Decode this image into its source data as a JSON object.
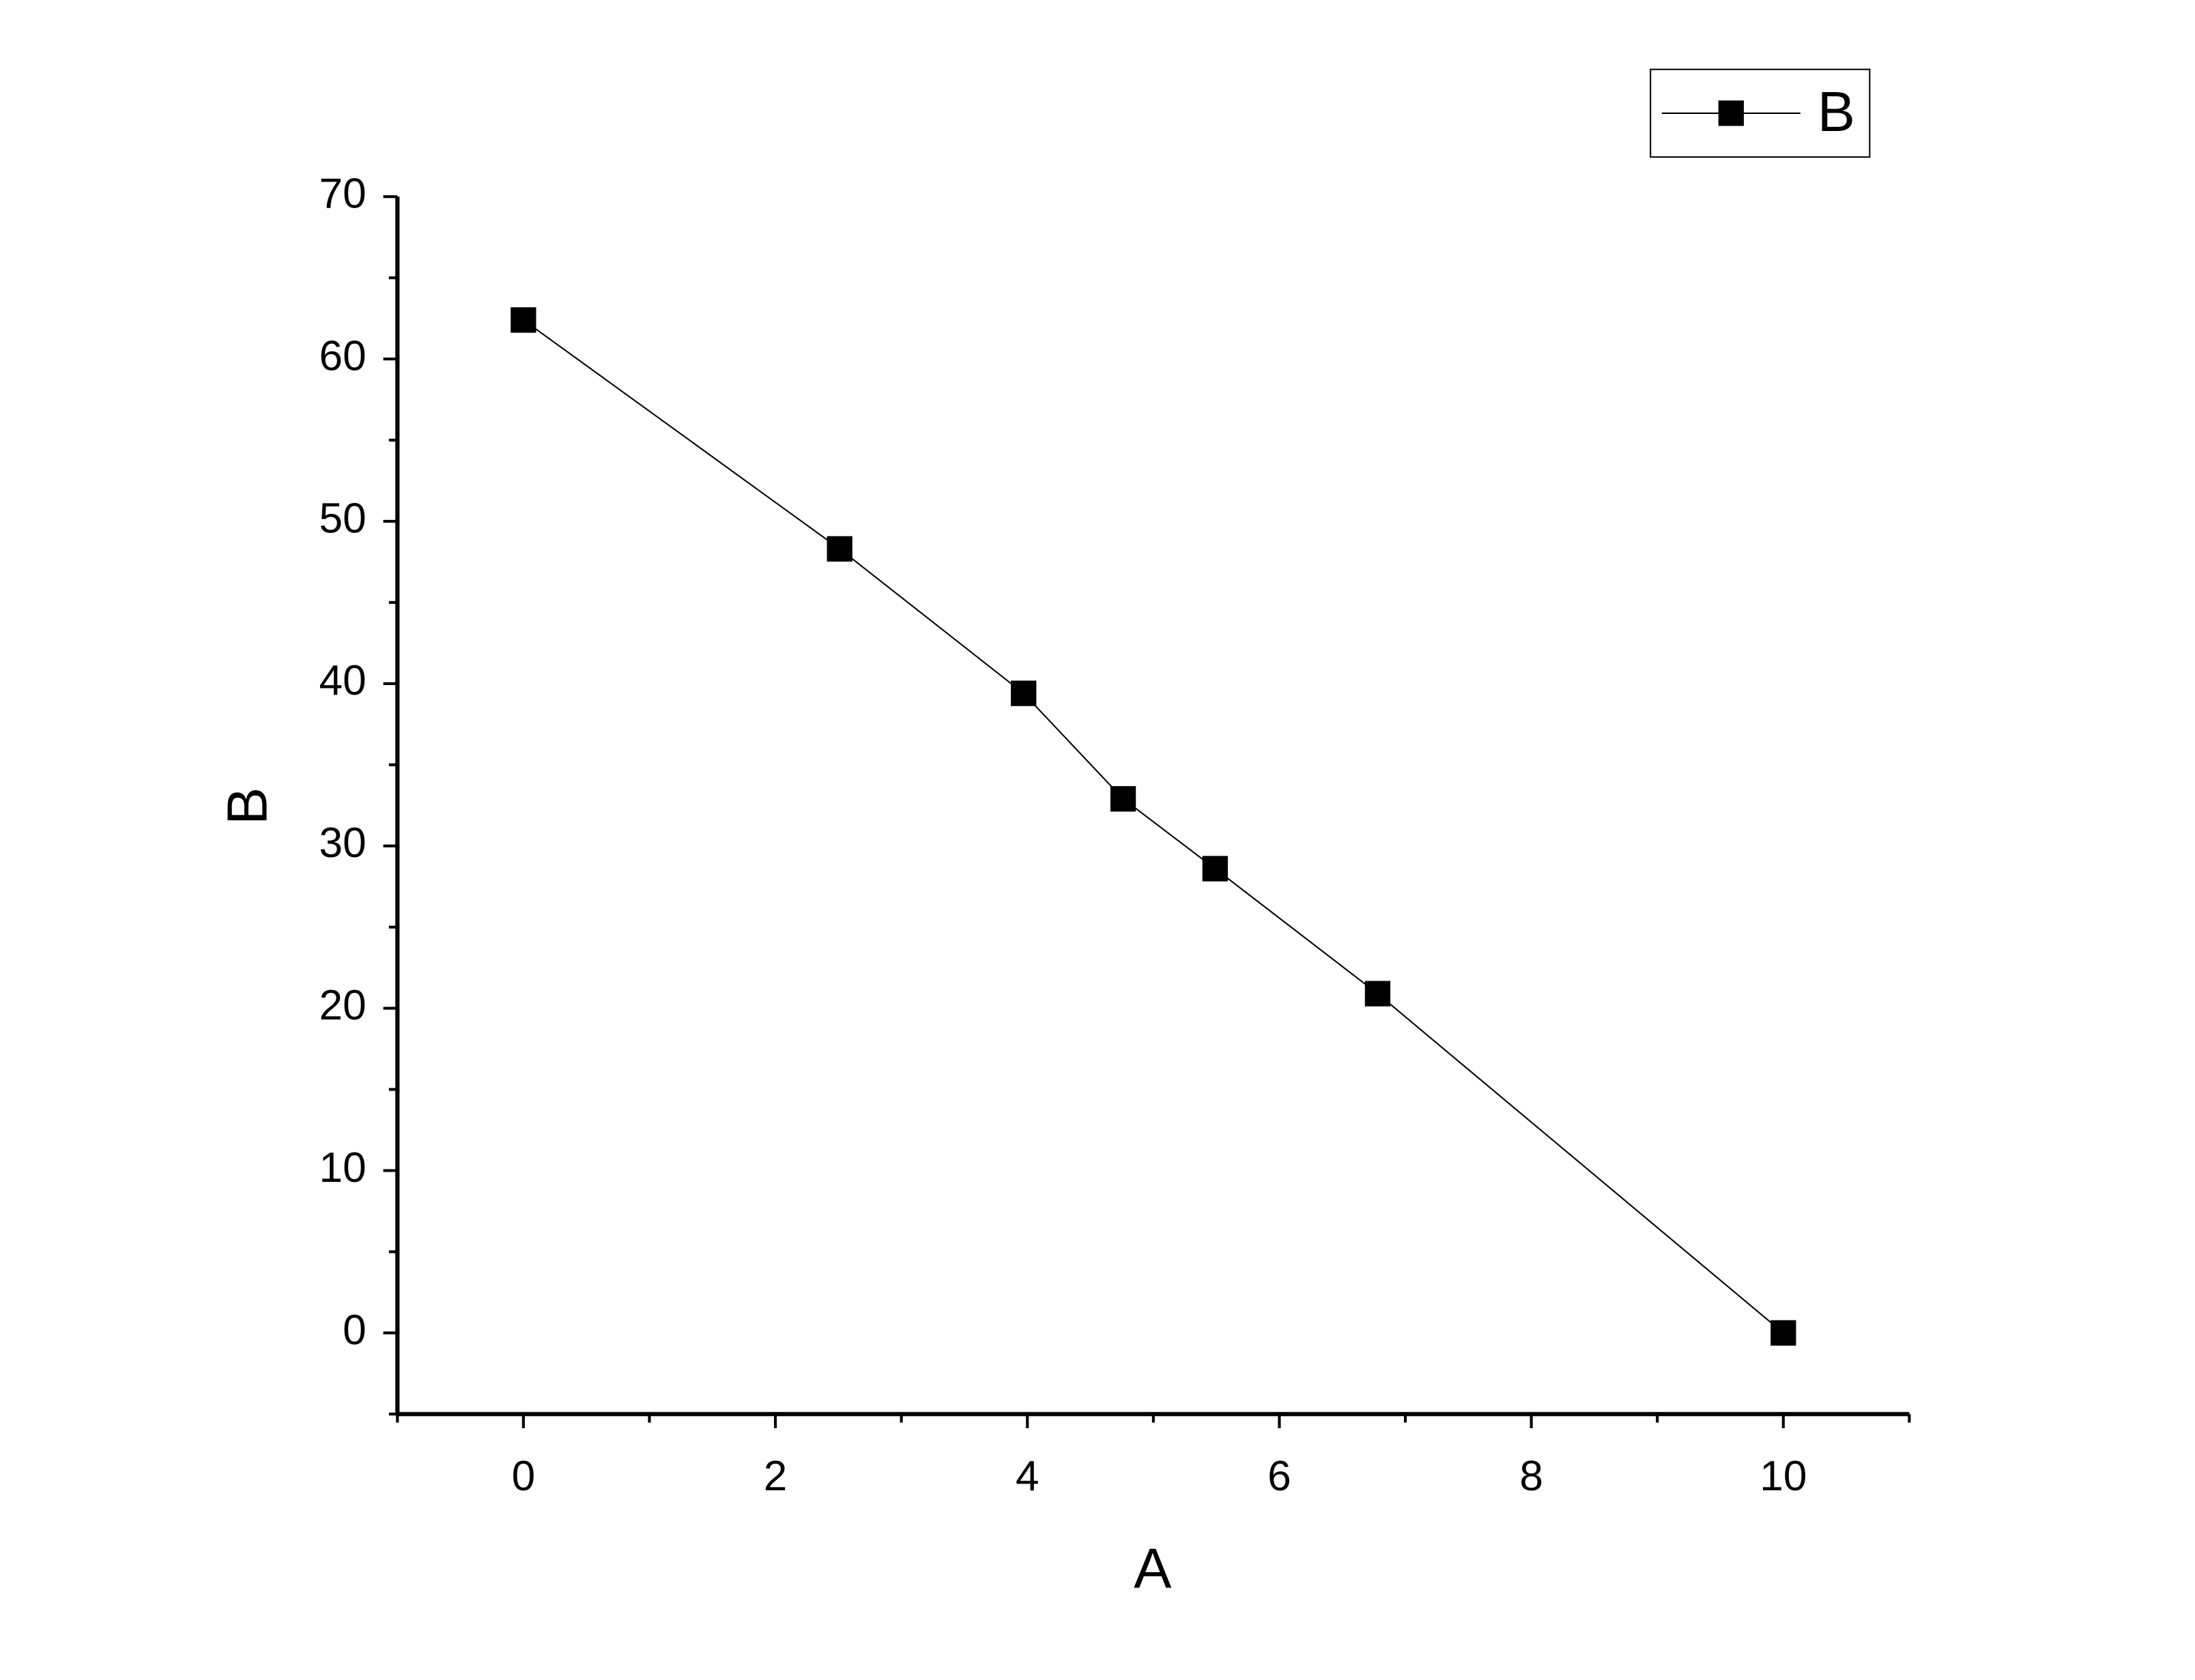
{
  "chart_data": {
    "type": "line",
    "x_label": "A",
    "y_label": "B",
    "x": [
      0,
      2.51,
      3.97,
      4.76,
      5.49,
      6.78,
      10
    ],
    "series": [
      {
        "name": "B",
        "color": "#000000",
        "values": [
          62.4,
          48.3,
          39.4,
          32.9,
          28.6,
          20.9,
          0
        ]
      }
    ],
    "xlim": [
      -1,
      11
    ],
    "xticks": [
      0,
      2,
      4,
      6,
      8,
      10
    ],
    "ylim": [
      -5,
      70
    ],
    "yticks": [
      0,
      10,
      20,
      30,
      40,
      50,
      60,
      70
    ],
    "grid": false,
    "legend": "top-right",
    "marker": "square"
  }
}
